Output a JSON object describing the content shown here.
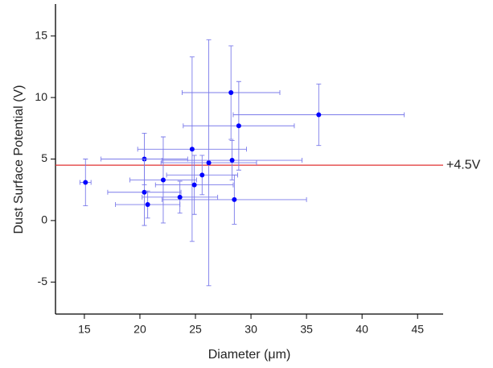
{
  "chart_data": {
    "type": "scatter",
    "x_label": "Diameter (μm)",
    "y_label": "Dust Surface Potential (V)",
    "xlim": [
      12.4,
      47.3
    ],
    "ylim": [
      -7.6,
      17.6
    ],
    "xticks": [
      15,
      20,
      25,
      30,
      35,
      40,
      45
    ],
    "yticks": [
      -5,
      0,
      5,
      10,
      15
    ],
    "series": [
      {
        "color": "#0000ff",
        "error_color": "#7b7bea",
        "x": [
          15.1,
          20.4,
          20.4,
          20.7,
          22.1,
          23.6,
          24.7,
          24.9,
          25.6,
          26.2,
          28.2,
          28.3,
          28.5,
          28.9,
          36.1
        ],
        "values": [
          3.1,
          5.0,
          2.3,
          1.3,
          3.3,
          1.9,
          5.8,
          2.9,
          3.7,
          4.7,
          10.4,
          4.9,
          1.7,
          7.7,
          8.6
        ],
        "x_error": [
          0.5,
          3.9,
          3.3,
          2.9,
          3.0,
          3.4,
          4.9,
          3.5,
          3.2,
          4.3,
          4.4,
          6.3,
          6.5,
          5.0,
          7.7
        ],
        "y_error": [
          1.9,
          2.1,
          2.7,
          1.1,
          3.5,
          1.3,
          7.5,
          2.4,
          1.6,
          10.0,
          3.8,
          1.6,
          2.0,
          3.6,
          2.5
        ]
      }
    ],
    "reference_line": {
      "value": 4.5,
      "label": "+4.5V",
      "color": "#e03030"
    }
  }
}
